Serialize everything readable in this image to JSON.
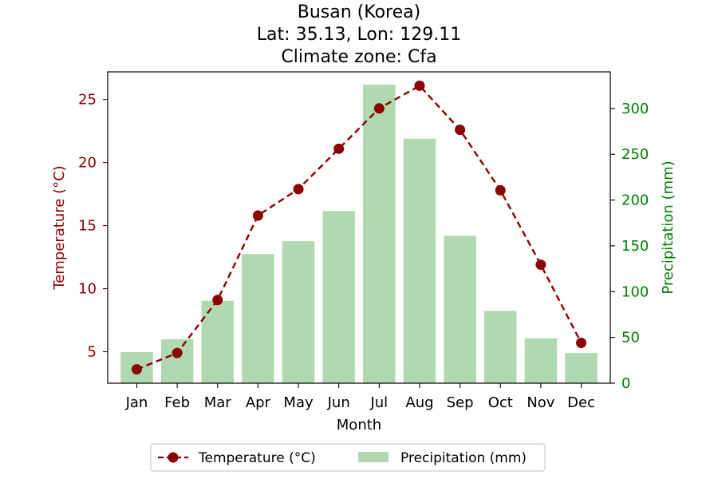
{
  "chart_data": {
    "type": "bar",
    "title_lines": [
      "Busan (Korea)",
      "Lat: 35.13, Lon: 129.11",
      "Climate zone: Cfa"
    ],
    "xlabel": "Month",
    "ylabel_left": "Temperature (°C)",
    "ylabel_right": "Precipitation (mm)",
    "categories": [
      "Jan",
      "Feb",
      "Mar",
      "Apr",
      "May",
      "Jun",
      "Jul",
      "Aug",
      "Sep",
      "Oct",
      "Nov",
      "Dec"
    ],
    "ylim_left": [
      2.5,
      27.2
    ],
    "yticks_left": [
      5,
      10,
      15,
      20,
      25
    ],
    "ylim_right": [
      0,
      340
    ],
    "yticks_right": [
      0,
      50,
      100,
      150,
      200,
      250,
      300
    ],
    "series": [
      {
        "name": "Temperature (°C)",
        "type": "line",
        "axis": "left",
        "color": "#8b0000",
        "style": "dashed",
        "marker": "circle",
        "values": [
          3.6,
          4.9,
          9.1,
          15.8,
          17.9,
          21.1,
          24.3,
          26.1,
          22.6,
          17.8,
          11.9,
          5.7
        ]
      },
      {
        "name": "Precipitation (mm)",
        "type": "bar",
        "axis": "right",
        "color": "#b1d9b1",
        "values": [
          34,
          48,
          90,
          141,
          155,
          188,
          326,
          267,
          161,
          79,
          49,
          33
        ]
      }
    ],
    "legend_placement": "bottom-center",
    "grid": false,
    "left_axis_color": "#8b0000",
    "right_axis_color": "#008000"
  }
}
